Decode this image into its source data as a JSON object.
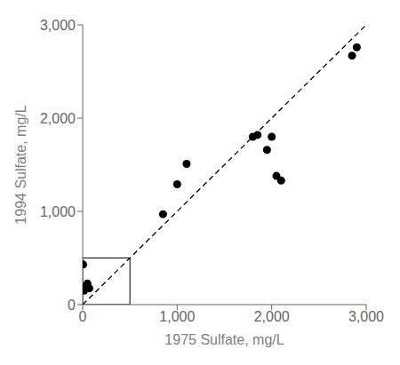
{
  "chart_data": {
    "type": "scatter",
    "xlabel": "1975 Sulfate, mg/L",
    "ylabel": "1994 Sulfate, mg/L",
    "series": [
      {
        "type": "scatter",
        "color": "black",
        "marker": "circle",
        "x": [
          5,
          15,
          30,
          50,
          70,
          850,
          1000,
          1100,
          1800,
          1850,
          1950,
          2000,
          2050,
          2100,
          2850,
          2900
        ],
        "values": [
          430,
          150,
          195,
          225,
          175,
          970,
          1290,
          1510,
          1800,
          1820,
          1660,
          1800,
          1380,
          1330,
          2670,
          2760
        ]
      },
      {
        "type": "line",
        "color": "black",
        "line_style": "dashed",
        "x": [
          0,
          3000
        ],
        "values": [
          0,
          3000
        ]
      }
    ],
    "inset_box": {
      "x": [
        0,
        500
      ],
      "y": [
        0,
        500
      ]
    },
    "xlim": [
      0,
      3000
    ],
    "ylim": [
      0,
      3000
    ],
    "xticks": [
      0,
      {
        "value": 1000,
        "label": "1,000"
      },
      {
        "value": 2000,
        "label": "2,000"
      },
      {
        "value": 3000,
        "label": "3,000"
      }
    ],
    "yticks": [
      0,
      {
        "value": 1000,
        "label": "1,000"
      },
      {
        "value": 2000,
        "label": "2,000"
      },
      {
        "value": 3000,
        "label": "3,000"
      }
    ],
    "grid": false
  }
}
